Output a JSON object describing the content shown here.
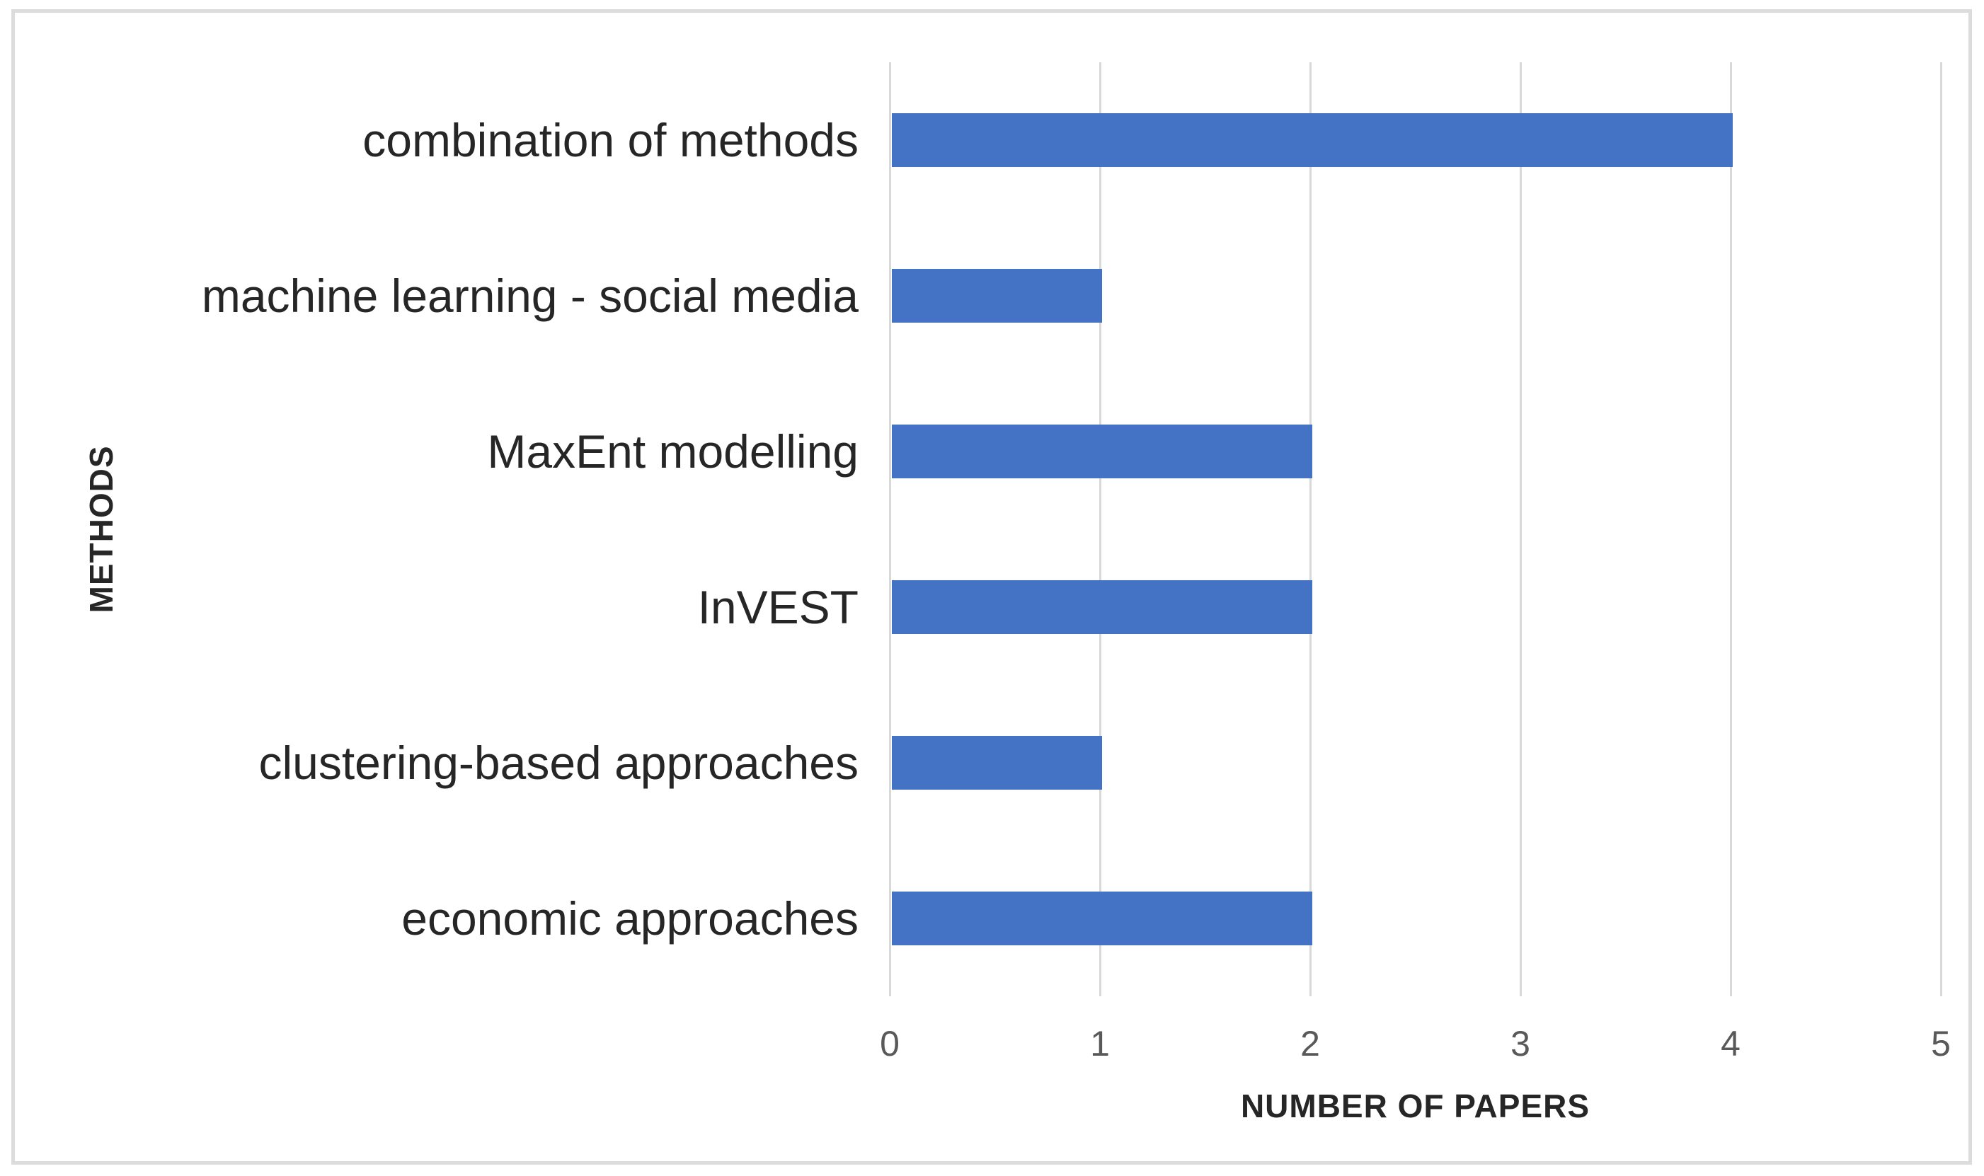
{
  "figure": {
    "background_color": "#ffffff",
    "border_color": "#dcdcdc"
  },
  "chart_data": {
    "type": "bar",
    "orientation": "horizontal",
    "title": "",
    "categories": [
      "combination of methods",
      "machine learning - social media",
      "MaxEnt modelling",
      "InVEST",
      "clustering-based approaches",
      "economic approaches"
    ],
    "values": [
      4,
      1,
      2,
      2,
      1,
      2
    ],
    "xlabel": "NUMBER OF PAPERS",
    "ylabel": "METHODS",
    "xlim": [
      0,
      5
    ],
    "xticks": [
      "0",
      "1",
      "2",
      "3",
      "4",
      "5"
    ],
    "grid": "vertical-gridlines-on",
    "legend": "none",
    "bar_color": "#4472c4",
    "gridline_color": "#d9d9d9",
    "tick_label_color": "#595959",
    "text_color": "#262626"
  }
}
